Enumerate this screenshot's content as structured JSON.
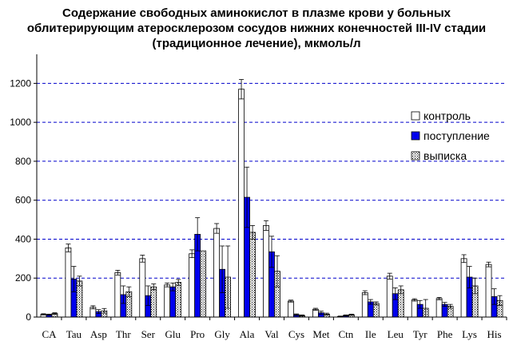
{
  "chart_data": {
    "type": "bar",
    "title": [
      "Содержание свободных аминокислот в плазме крови у больных",
      "облитерирующим атеросклерозом сосудов нижних конечностей III-IV стадии",
      "(традиционное лечение), мкмоль/л"
    ],
    "xlabel": "",
    "ylabel": "",
    "ylim": [
      0,
      1300
    ],
    "yticks": [
      0,
      200,
      400,
      600,
      800,
      1000,
      1200
    ],
    "grid": "horizontal-dashed",
    "legend_position": "top-right",
    "categories": [
      "CA",
      "Tau",
      "Asp",
      "Thr",
      "Ser",
      "Glu",
      "Pro",
      "Gly",
      "Ala",
      "Val",
      "Cys",
      "Met",
      "Ctn",
      "Ile",
      "Leu",
      "Tyr",
      "Phe",
      "Lys",
      "His"
    ],
    "series": [
      {
        "name": "контроль",
        "color": "#ffffff",
        "pattern": "none",
        "values": [
          14,
          355,
          50,
          228,
          300,
          165,
          325,
          455,
          1170,
          470,
          82,
          40,
          3,
          125,
          210,
          88,
          95,
          300,
          270
        ],
        "errors": [
          3,
          20,
          8,
          12,
          18,
          10,
          20,
          25,
          50,
          25,
          5,
          5,
          2,
          10,
          15,
          6,
          6,
          20,
          12
        ]
      },
      {
        "name": "поступление",
        "color": "#0000ee",
        "pattern": "none",
        "values": [
          12,
          195,
          28,
          115,
          110,
          155,
          425,
          245,
          615,
          335,
          12,
          22,
          8,
          78,
          120,
          65,
          65,
          205,
          105
        ],
        "errors": [
          3,
          65,
          10,
          45,
          50,
          20,
          85,
          120,
          155,
          80,
          4,
          8,
          3,
          12,
          30,
          20,
          10,
          55,
          40
        ]
      },
      {
        "name": "выписка",
        "color": "#ffffff",
        "pattern": "dots",
        "values": [
          18,
          185,
          32,
          130,
          155,
          178,
          340,
          205,
          435,
          235,
          8,
          15,
          12,
          70,
          140,
          45,
          55,
          160,
          85
        ],
        "errors": [
          4,
          25,
          12,
          25,
          15,
          15,
          0,
          160,
          35,
          80,
          3,
          5,
          3,
          8,
          20,
          45,
          10,
          40,
          25
        ]
      }
    ]
  }
}
